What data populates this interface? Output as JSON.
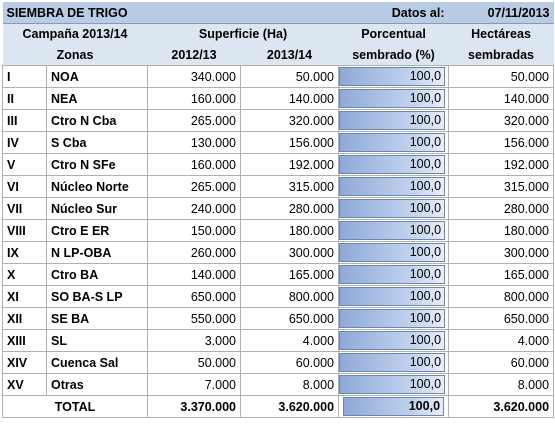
{
  "header": {
    "title": "SIEMBRA DE TRIGO",
    "date_label": "Datos al:",
    "date_value": "07/11/2013"
  },
  "columns": {
    "campaign": "Campaña 2013/14",
    "surface": "Superficie (Ha)",
    "pct_line1": "Porcentual",
    "pct_line2": "sembrado (%)",
    "ha_line1": "Hectáreas",
    "ha_line2": "sembradas",
    "zones": "Zonas",
    "y1": "2012/13",
    "y2": "2013/14"
  },
  "rows": [
    {
      "rn": "I",
      "zone": "NOA",
      "s1": "340.000",
      "s2": "50.000",
      "pct": "100,0",
      "pct_value": 100.0,
      "ha": "50.000"
    },
    {
      "rn": "II",
      "zone": "NEA",
      "s1": "160.000",
      "s2": "140.000",
      "pct": "100,0",
      "pct_value": 100.0,
      "ha": "140.000"
    },
    {
      "rn": "III",
      "zone": "Ctro N Cba",
      "s1": "265.000",
      "s2": "320.000",
      "pct": "100,0",
      "pct_value": 100.0,
      "ha": "320.000"
    },
    {
      "rn": "IV",
      "zone": "S Cba",
      "s1": "130.000",
      "s2": "156.000",
      "pct": "100,0",
      "pct_value": 100.0,
      "ha": "156.000"
    },
    {
      "rn": "V",
      "zone": "Ctro N SFe",
      "s1": "160.000",
      "s2": "192.000",
      "pct": "100,0",
      "pct_value": 100.0,
      "ha": "192.000"
    },
    {
      "rn": "VI",
      "zone": "Núcleo Norte",
      "s1": "265.000",
      "s2": "315.000",
      "pct": "100,0",
      "pct_value": 100.0,
      "ha": "315.000"
    },
    {
      "rn": "VII",
      "zone": "Núcleo Sur",
      "s1": "240.000",
      "s2": "280.000",
      "pct": "100,0",
      "pct_value": 100.0,
      "ha": "280.000"
    },
    {
      "rn": "VIII",
      "zone": "Ctro E ER",
      "s1": "150.000",
      "s2": "180.000",
      "pct": "100,0",
      "pct_value": 100.0,
      "ha": "180.000"
    },
    {
      "rn": "IX",
      "zone": "N LP-OBA",
      "s1": "260.000",
      "s2": "300.000",
      "pct": "100,0",
      "pct_value": 100.0,
      "ha": "300.000"
    },
    {
      "rn": "X",
      "zone": "Ctro BA",
      "s1": "140.000",
      "s2": "165.000",
      "pct": "100,0",
      "pct_value": 100.0,
      "ha": "165.000"
    },
    {
      "rn": "XI",
      "zone": "SO BA-S LP",
      "s1": "650.000",
      "s2": "800.000",
      "pct": "100,0",
      "pct_value": 100.0,
      "ha": "800.000"
    },
    {
      "rn": "XII",
      "zone": "SE BA",
      "s1": "550.000",
      "s2": "650.000",
      "pct": "100,0",
      "pct_value": 100.0,
      "ha": "650.000"
    },
    {
      "rn": "XIII",
      "zone": "SL",
      "s1": "3.000",
      "s2": "4.000",
      "pct": "100,0",
      "pct_value": 100.0,
      "ha": "4.000"
    },
    {
      "rn": "XIV",
      "zone": "Cuenca Sal",
      "s1": "50.000",
      "s2": "60.000",
      "pct": "100,0",
      "pct_value": 100.0,
      "ha": "60.000"
    },
    {
      "rn": "XV",
      "zone": "Otras",
      "s1": "7.000",
      "s2": "8.000",
      "pct": "100,0",
      "pct_value": 100.0,
      "ha": "8.000"
    }
  ],
  "total": {
    "label": "TOTAL",
    "s1": "3.370.000",
    "s2": "3.620.000",
    "pct": "100,0",
    "pct_value": 100.0,
    "ha": "3.620.000"
  },
  "colors": {
    "header_bg": "#b9cce4",
    "subheader_bg": "#dce6f1",
    "bar_fill": "#8ea9d8"
  }
}
